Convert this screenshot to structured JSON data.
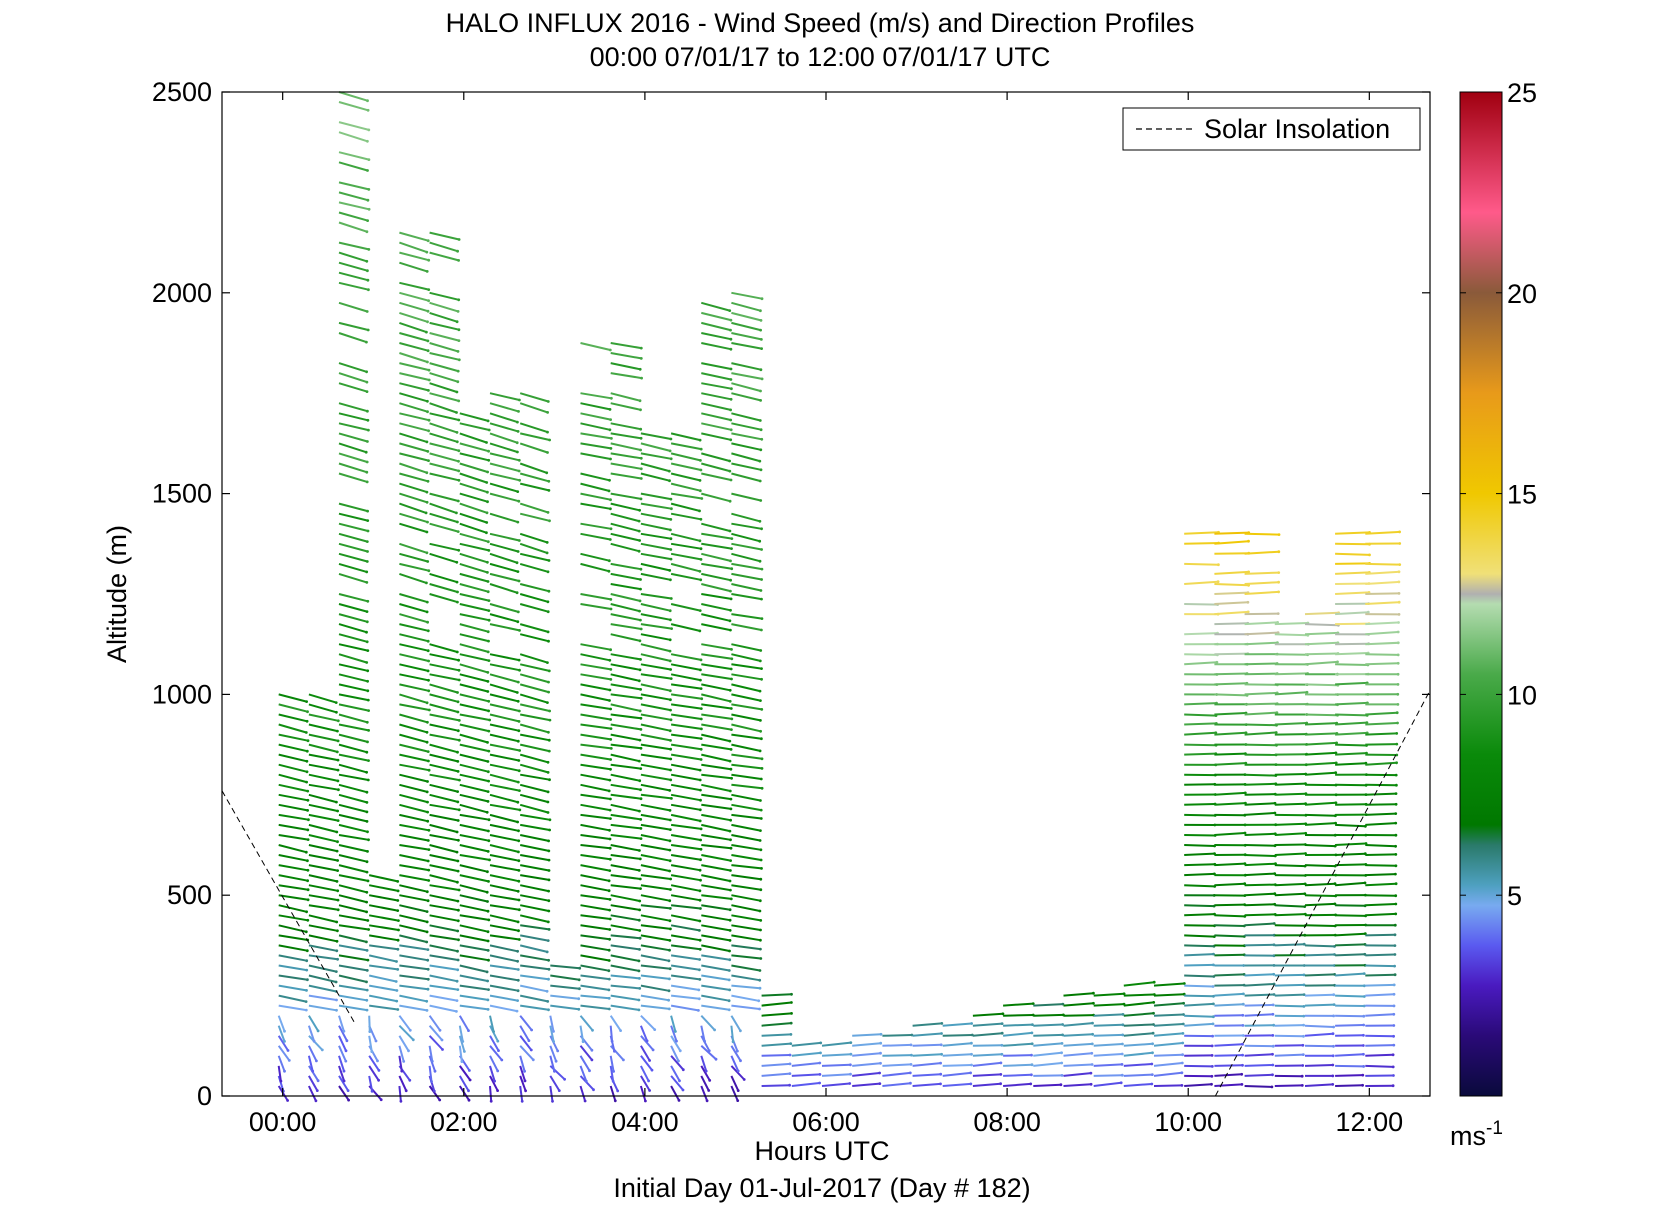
{
  "chart_data": {
    "type": "wind_barb_profile",
    "title": "HALO INFLUX 2016 - Wind Speed (m/s) and Direction Profiles",
    "subtitle": "00:00 07/01/17 to 12:00 07/01/17  UTC",
    "xlabel": "Hours UTC",
    "xlabel2": "Initial Day 01-Jul-2017 (Day # 182)",
    "ylabel": "Altitude (m)",
    "xlim": [
      -0.67,
      12.67
    ],
    "ylim": [
      0,
      2500
    ],
    "x_ticks": [
      {
        "value": 0,
        "label": "00:00"
      },
      {
        "value": 2,
        "label": "02:00"
      },
      {
        "value": 4,
        "label": "04:00"
      },
      {
        "value": 6,
        "label": "06:00"
      },
      {
        "value": 8,
        "label": "08:00"
      },
      {
        "value": 10,
        "label": "10:00"
      },
      {
        "value": 12,
        "label": "12:00"
      }
    ],
    "y_ticks": [
      {
        "value": 0,
        "label": "0"
      },
      {
        "value": 500,
        "label": "500"
      },
      {
        "value": 1000,
        "label": "1000"
      },
      {
        "value": 1500,
        "label": "1500"
      },
      {
        "value": 2000,
        "label": "2000"
      },
      {
        "value": 2500,
        "label": "2500"
      }
    ],
    "legend": {
      "label": "Solar Insolation",
      "placement": "top-right",
      "style": "dashed"
    },
    "colorbar": {
      "range": [
        0,
        25
      ],
      "ticks": [
        {
          "value": 5,
          "label": "5"
        },
        {
          "value": 10,
          "label": "10"
        },
        {
          "value": 15,
          "label": "15"
        },
        {
          "value": 20,
          "label": "20"
        },
        {
          "value": 25,
          "label": "25"
        }
      ],
      "unit": "ms",
      "unit_exp": "-1"
    },
    "solar_insolation": {
      "morning": [
        [
          -0.67,
          760
        ],
        [
          0.8,
          180
        ]
      ],
      "evening": [
        [
          10.3,
          0
        ],
        [
          12.67,
          1010
        ]
      ]
    },
    "profile_segments": [
      {
        "t0": 0.0,
        "t1": 0.67,
        "z0": 0,
        "z1": 1020,
        "dz": 25
      },
      {
        "t0": 0.4,
        "t1": 2.67,
        "z0": 0,
        "z1": 2500,
        "dz": 25
      },
      {
        "t0": 3.0,
        "t1": 5.0,
        "z0": 0,
        "z1": 1900,
        "dz": 25
      },
      {
        "t0": 5.33,
        "t1": 9.67,
        "z0": 0,
        "z1": 300,
        "dz": 25
      },
      {
        "t0": 10.0,
        "t1": 12.0,
        "z0": 0,
        "z1": 1400,
        "dz": 25
      }
    ]
  }
}
